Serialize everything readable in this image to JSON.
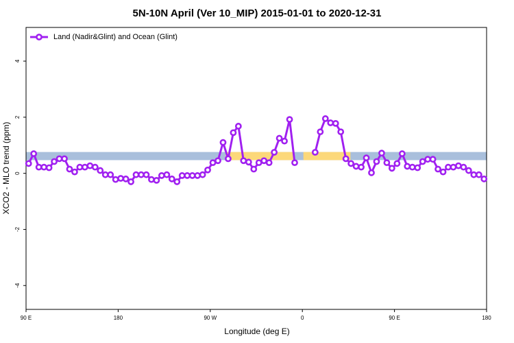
{
  "chart_data": {
    "type": "line",
    "title": "5N-10N April (Ver 10_MIP)   2015-01-01 to 2020-12-31",
    "x_label": "Longitude (deg E)",
    "y_label": "XCO2 - MLO trend (ppm)",
    "xlim": [
      90,
      540
    ],
    "ylim": [
      -4.85,
      5.2
    ],
    "xticks": [
      {
        "value": 90,
        "label": "90 E"
      },
      180,
      {
        "value": 270,
        "label": "90 W"
      },
      {
        "value": 360,
        "label": "0"
      },
      {
        "value": 450,
        "label": "90 E"
      },
      {
        "value": 540,
        "label": "180"
      }
    ],
    "yticks": [
      -4,
      -2,
      0,
      2,
      4
    ],
    "legend": "top-left",
    "bands": [
      {
        "color": "#a9bfdc",
        "x": [
          90,
          540
        ],
        "y": [
          0.47,
          0.76
        ]
      },
      {
        "color": "#fcd87a",
        "x": [
          285,
          351
        ],
        "y": [
          0.47,
          0.76
        ]
      },
      {
        "color": "#fcd87a",
        "x": [
          361,
          407
        ],
        "y": [
          0.47,
          0.76
        ]
      }
    ],
    "x": [
      92.5,
      97.5,
      102.5,
      107.5,
      112.5,
      117.5,
      122.5,
      127.5,
      132.5,
      137.5,
      142.5,
      147.5,
      152.5,
      157.5,
      162.5,
      167.5,
      172.5,
      177.5,
      182.5,
      187.5,
      192.5,
      197.5,
      202.5,
      207.5,
      212.5,
      217.5,
      222.5,
      227.5,
      232.5,
      237.5,
      242.5,
      247.5,
      252.5,
      257.5,
      262.5,
      267.5,
      272.5,
      277.5,
      282.5,
      287.5,
      292.5,
      297.5,
      302.5,
      307.5,
      312.5,
      317.5,
      322.5,
      327.5,
      332.5,
      337.5,
      342.5,
      347.5,
      352.5,
      357.5,
      362.5,
      367.5,
      372.5,
      377.5,
      382.5,
      387.5,
      392.5,
      397.5,
      402.5,
      407.5,
      412.5,
      417.5,
      422.5,
      427.5,
      432.5,
      437.5,
      442.5,
      447.5,
      452.5,
      457.5,
      462.5,
      467.5,
      472.5,
      477.5,
      482.5,
      487.5,
      492.5,
      497.5,
      502.5,
      507.5,
      512.5,
      517.5,
      522.5,
      527.5,
      532.5,
      537.5
    ],
    "series": [
      {
        "name": "Land (Nadir&Glint) and Ocean (Glint)",
        "color": "#a020f0",
        "values": [
          0.35,
          0.7,
          0.22,
          0.22,
          0.2,
          0.42,
          0.52,
          0.52,
          0.15,
          0.05,
          0.22,
          0.22,
          0.27,
          0.22,
          0.1,
          -0.05,
          -0.05,
          -0.22,
          -0.18,
          -0.2,
          -0.3,
          -0.05,
          -0.05,
          -0.05,
          -0.22,
          -0.25,
          -0.08,
          -0.05,
          -0.2,
          -0.3,
          -0.08,
          -0.08,
          -0.08,
          -0.08,
          -0.05,
          0.12,
          0.38,
          0.45,
          1.1,
          0.52,
          1.45,
          1.68,
          0.45,
          0.4,
          0.15,
          0.38,
          0.45,
          0.38,
          0.75,
          1.25,
          1.15,
          1.92,
          0.38,
          null,
          null,
          null,
          0.75,
          1.48,
          1.95,
          1.8,
          1.78,
          1.48,
          0.52,
          0.35,
          0.25,
          0.22,
          0.55,
          0.02,
          0.42,
          0.72,
          0.38,
          0.18,
          0.35,
          0.7,
          0.25,
          0.22,
          0.2,
          0.42,
          0.5,
          0.5,
          0.15,
          0.05,
          0.22,
          0.22,
          0.27,
          0.22,
          0.1,
          -0.05,
          -0.05,
          -0.2
        ]
      }
    ]
  }
}
